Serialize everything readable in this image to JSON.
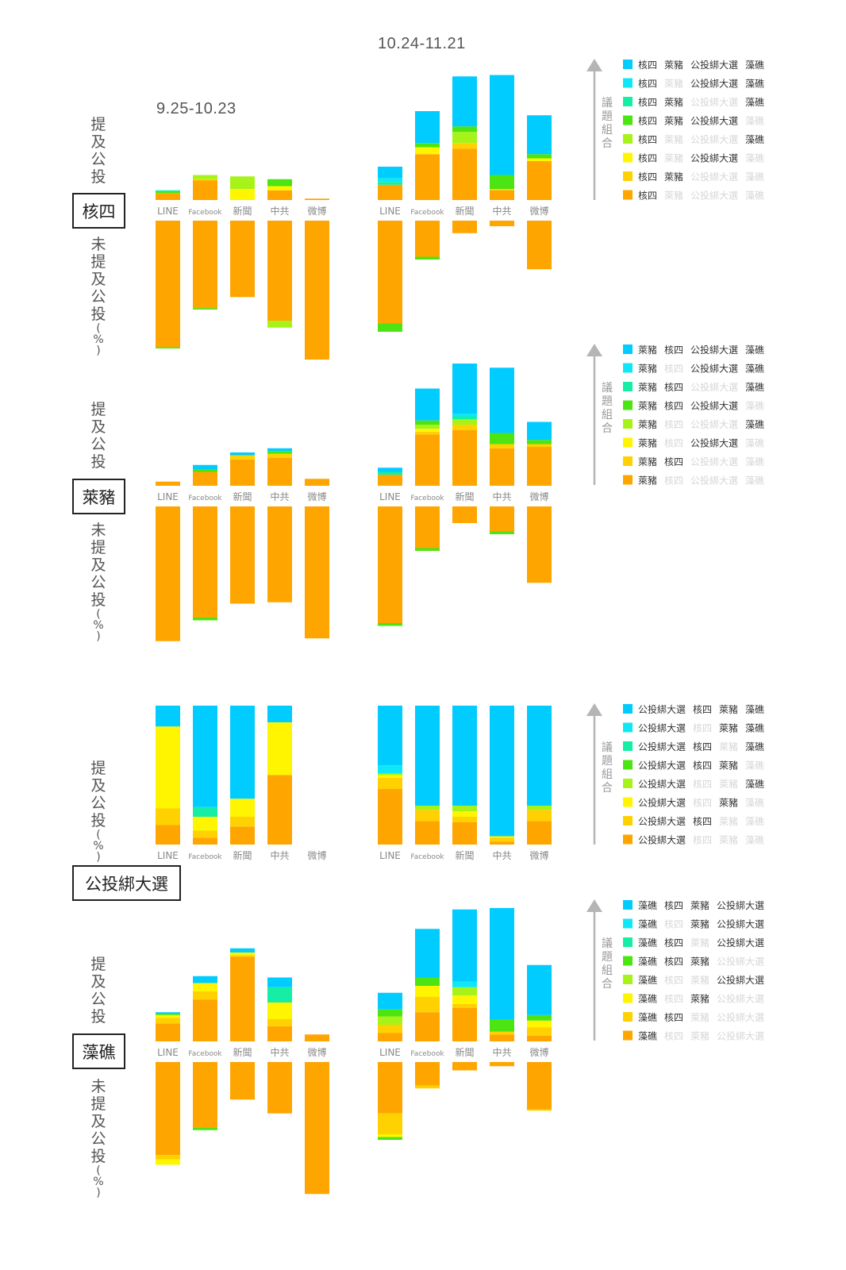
{
  "periods": [
    "9.25-10.23",
    "10.24-11.21"
  ],
  "platforms": [
    "LINE",
    "Facebook",
    "新聞",
    "中共",
    "微博"
  ],
  "labels": {
    "mentioned": "提及公投",
    "not_mentioned": "未提及公投",
    "pct": "(%)",
    "legend_axis": "議題組合"
  },
  "colors": [
    "#00CCFF",
    "#0FE7F7",
    "#16EDA5",
    "#4CE412",
    "#A7F219",
    "#FFF500",
    "#FFD100",
    "#FFA500"
  ],
  "dim_color": "#D6D6D6",
  "topics": [
    {
      "name": "核四",
      "legend": [
        [
          [
            "核四",
            1
          ],
          [
            "萊豬",
            1
          ],
          [
            "公投綁大選",
            1
          ],
          [
            "藻礁",
            1
          ]
        ],
        [
          [
            "核四",
            1
          ],
          [
            "萊豬",
            0
          ],
          [
            "公投綁大選",
            1
          ],
          [
            "藻礁",
            1
          ]
        ],
        [
          [
            "核四",
            1
          ],
          [
            "萊豬",
            1
          ],
          [
            "公投綁大選",
            0
          ],
          [
            "藻礁",
            1
          ]
        ],
        [
          [
            "核四",
            1
          ],
          [
            "萊豬",
            1
          ],
          [
            "公投綁大選",
            1
          ],
          [
            "藻礁",
            0
          ]
        ],
        [
          [
            "核四",
            1
          ],
          [
            "萊豬",
            0
          ],
          [
            "公投綁大選",
            0
          ],
          [
            "藻礁",
            1
          ]
        ],
        [
          [
            "核四",
            1
          ],
          [
            "萊豬",
            0
          ],
          [
            "公投綁大選",
            1
          ],
          [
            "藻礁",
            0
          ]
        ],
        [
          [
            "核四",
            1
          ],
          [
            "萊豬",
            1
          ],
          [
            "公投綁大選",
            0
          ],
          [
            "藻礁",
            0
          ]
        ],
        [
          [
            "核四",
            1
          ],
          [
            "萊豬",
            0
          ],
          [
            "公投綁大選",
            0
          ],
          [
            "藻礁",
            0
          ]
        ]
      ]
    },
    {
      "name": "萊豬",
      "legend": [
        [
          [
            "萊豬",
            1
          ],
          [
            "核四",
            1
          ],
          [
            "公投綁大選",
            1
          ],
          [
            "藻礁",
            1
          ]
        ],
        [
          [
            "萊豬",
            1
          ],
          [
            "核四",
            0
          ],
          [
            "公投綁大選",
            1
          ],
          [
            "藻礁",
            1
          ]
        ],
        [
          [
            "萊豬",
            1
          ],
          [
            "核四",
            1
          ],
          [
            "公投綁大選",
            0
          ],
          [
            "藻礁",
            1
          ]
        ],
        [
          [
            "萊豬",
            1
          ],
          [
            "核四",
            1
          ],
          [
            "公投綁大選",
            1
          ],
          [
            "藻礁",
            0
          ]
        ],
        [
          [
            "萊豬",
            1
          ],
          [
            "核四",
            0
          ],
          [
            "公投綁大選",
            0
          ],
          [
            "藻礁",
            1
          ]
        ],
        [
          [
            "萊豬",
            1
          ],
          [
            "核四",
            0
          ],
          [
            "公投綁大選",
            1
          ],
          [
            "藻礁",
            0
          ]
        ],
        [
          [
            "萊豬",
            1
          ],
          [
            "核四",
            1
          ],
          [
            "公投綁大選",
            0
          ],
          [
            "藻礁",
            0
          ]
        ],
        [
          [
            "萊豬",
            1
          ],
          [
            "核四",
            0
          ],
          [
            "公投綁大選",
            0
          ],
          [
            "藻礁",
            0
          ]
        ]
      ]
    },
    {
      "name": "公投綁大選",
      "legend": [
        [
          [
            "公投綁大選",
            1
          ],
          [
            "核四",
            1
          ],
          [
            "萊豬",
            1
          ],
          [
            "藻礁",
            1
          ]
        ],
        [
          [
            "公投綁大選",
            1
          ],
          [
            "核四",
            0
          ],
          [
            "萊豬",
            1
          ],
          [
            "藻礁",
            1
          ]
        ],
        [
          [
            "公投綁大選",
            1
          ],
          [
            "核四",
            1
          ],
          [
            "萊豬",
            0
          ],
          [
            "藻礁",
            1
          ]
        ],
        [
          [
            "公投綁大選",
            1
          ],
          [
            "核四",
            1
          ],
          [
            "萊豬",
            1
          ],
          [
            "藻礁",
            0
          ]
        ],
        [
          [
            "公投綁大選",
            1
          ],
          [
            "核四",
            0
          ],
          [
            "萊豬",
            0
          ],
          [
            "藻礁",
            1
          ]
        ],
        [
          [
            "公投綁大選",
            1
          ],
          [
            "核四",
            0
          ],
          [
            "萊豬",
            1
          ],
          [
            "藻礁",
            0
          ]
        ],
        [
          [
            "公投綁大選",
            1
          ],
          [
            "核四",
            1
          ],
          [
            "萊豬",
            0
          ],
          [
            "藻礁",
            0
          ]
        ],
        [
          [
            "公投綁大選",
            1
          ],
          [
            "核四",
            0
          ],
          [
            "萊豬",
            0
          ],
          [
            "藻礁",
            0
          ]
        ]
      ]
    },
    {
      "name": "藻礁",
      "legend": [
        [
          [
            "藻礁",
            1
          ],
          [
            "核四",
            1
          ],
          [
            "萊豬",
            1
          ],
          [
            "公投綁大選",
            1
          ]
        ],
        [
          [
            "藻礁",
            1
          ],
          [
            "核四",
            0
          ],
          [
            "萊豬",
            1
          ],
          [
            "公投綁大選",
            1
          ]
        ],
        [
          [
            "藻礁",
            1
          ],
          [
            "核四",
            1
          ],
          [
            "萊豬",
            0
          ],
          [
            "公投綁大選",
            1
          ]
        ],
        [
          [
            "藻礁",
            1
          ],
          [
            "核四",
            1
          ],
          [
            "萊豬",
            1
          ],
          [
            "公投綁大選",
            0
          ]
        ],
        [
          [
            "藻礁",
            1
          ],
          [
            "核四",
            0
          ],
          [
            "萊豬",
            0
          ],
          [
            "公投綁大選",
            1
          ]
        ],
        [
          [
            "藻礁",
            1
          ],
          [
            "核四",
            0
          ],
          [
            "萊豬",
            1
          ],
          [
            "公投綁大選",
            0
          ]
        ],
        [
          [
            "藻礁",
            1
          ],
          [
            "核四",
            1
          ],
          [
            "萊豬",
            0
          ],
          [
            "公投綁大選",
            0
          ]
        ],
        [
          [
            "藻礁",
            1
          ],
          [
            "核四",
            0
          ],
          [
            "萊豬",
            0
          ],
          [
            "公投綁大選",
            0
          ]
        ]
      ]
    }
  ],
  "chart_data": [
    {
      "type": "bar",
      "topic": "核四",
      "period": "9.25-10.23",
      "categories": [
        "LINE",
        "Facebook",
        "新聞",
        "中共",
        "微博"
      ],
      "ylabel": "提及公投 / 未提及公投 (%)",
      "mentioned": [
        [
          0,
          0,
          1,
          1,
          0,
          0,
          0,
          5
        ],
        [
          0,
          0,
          0,
          0,
          3,
          0,
          1,
          14
        ],
        [
          0,
          0,
          0,
          0,
          9,
          8,
          0,
          0
        ],
        [
          0,
          0,
          0,
          5,
          0,
          3,
          0,
          7
        ],
        [
          0,
          0,
          0,
          0,
          0,
          0,
          0,
          1
        ]
      ],
      "not_mentioned": [
        [
          0,
          0,
          0,
          1,
          0,
          0,
          0,
          91
        ],
        [
          0,
          0,
          0,
          1,
          0,
          0,
          0,
          63
        ],
        [
          0,
          0,
          0,
          0,
          0,
          0,
          0,
          55
        ],
        [
          0,
          0,
          0,
          0,
          5,
          0,
          0,
          72
        ],
        [
          0,
          0,
          0,
          0,
          0,
          0,
          0,
          100
        ]
      ]
    },
    {
      "type": "bar",
      "topic": "核四",
      "period": "10.24-11.21",
      "categories": [
        "LINE",
        "Facebook",
        "新聞",
        "中共",
        "微博"
      ],
      "ylabel": "提及公投 / 未提及公投 (%)",
      "mentioned": [
        [
          8,
          3,
          2,
          0,
          0,
          0,
          0,
          11
        ],
        [
          23,
          0,
          0,
          3,
          0,
          5,
          0,
          33
        ],
        [
          36,
          0,
          0,
          4,
          8,
          0,
          4,
          37
        ],
        [
          72,
          0,
          0,
          10,
          0,
          0,
          1,
          7
        ],
        [
          28,
          0,
          0,
          3,
          0,
          2,
          0,
          28
        ]
      ],
      "not_mentioned": [
        [
          0,
          0,
          0,
          6,
          0,
          0,
          0,
          74
        ],
        [
          0,
          0,
          0,
          2,
          0,
          0,
          0,
          26
        ],
        [
          0,
          0,
          0,
          0,
          0,
          0,
          0,
          9
        ],
        [
          0,
          0,
          0,
          0,
          0,
          0,
          0,
          4
        ],
        [
          0,
          0,
          0,
          0,
          0,
          0,
          0,
          35
        ]
      ]
    },
    {
      "type": "bar",
      "topic": "萊豬",
      "period": "9.25-10.23",
      "categories": [
        "LINE",
        "Facebook",
        "新聞",
        "中共",
        "微博"
      ],
      "ylabel": "提及公投 / 未提及公投 (%)",
      "mentioned": [
        [
          0,
          0,
          0,
          0,
          0,
          0,
          0,
          3
        ],
        [
          3,
          0,
          0,
          2,
          0,
          0,
          0,
          10
        ],
        [
          2,
          0,
          0,
          0,
          0,
          0,
          3,
          19
        ],
        [
          2,
          0,
          0,
          2,
          0,
          0,
          3,
          20
        ],
        [
          0,
          0,
          0,
          0,
          0,
          0,
          0,
          5
        ]
      ],
      "not_mentioned": [
        [
          0,
          0,
          0,
          0,
          0,
          0,
          0,
          97
        ],
        [
          0,
          0,
          0,
          2,
          0,
          0,
          0,
          80
        ],
        [
          0,
          0,
          0,
          0,
          0,
          0,
          0,
          70
        ],
        [
          0,
          0,
          0,
          0,
          0,
          0,
          0,
          69
        ],
        [
          0,
          0,
          0,
          0,
          0,
          0,
          0,
          95
        ]
      ]
    },
    {
      "type": "bar",
      "topic": "萊豬",
      "period": "10.24-11.21",
      "categories": [
        "LINE",
        "Facebook",
        "新聞",
        "中共",
        "微博"
      ],
      "ylabel": "提及公投 / 未提及公投 (%)",
      "mentioned": [
        [
          3,
          0,
          2,
          0,
          0,
          0,
          0,
          8
        ],
        [
          23,
          0,
          0,
          3,
          3,
          2,
          2,
          37
        ],
        [
          36,
          2,
          2,
          0,
          4,
          0,
          4,
          40
        ],
        [
          47,
          0,
          0,
          8,
          0,
          0,
          3,
          27
        ],
        [
          13,
          0,
          0,
          3,
          0,
          0,
          2,
          28
        ]
      ],
      "not_mentioned": [
        [
          0,
          0,
          0,
          2,
          0,
          0,
          0,
          84
        ],
        [
          0,
          0,
          0,
          2,
          0,
          0,
          0,
          30
        ],
        [
          0,
          0,
          0,
          0,
          0,
          0,
          0,
          12
        ],
        [
          0,
          0,
          0,
          2,
          0,
          0,
          0,
          18
        ],
        [
          0,
          0,
          0,
          0,
          0,
          0,
          0,
          55
        ]
      ]
    },
    {
      "type": "bar",
      "topic": "公投綁大選",
      "period": "9.25-10.23",
      "categories": [
        "LINE",
        "Facebook",
        "新聞",
        "中共",
        "微博"
      ],
      "ylabel": "提及公投 (%)",
      "mentioned": [
        [
          15,
          0,
          0,
          0,
          0,
          59,
          12,
          14
        ],
        [
          73,
          0,
          7,
          0,
          0,
          10,
          5,
          5
        ],
        [
          67,
          0,
          0,
          0,
          0,
          13,
          7,
          13
        ],
        [
          12,
          0,
          0,
          0,
          0,
          38,
          0,
          50
        ],
        [
          0,
          0,
          0,
          0,
          0,
          0,
          0,
          0
        ]
      ]
    },
    {
      "type": "bar",
      "topic": "公投綁大選",
      "period": "10.24-11.21",
      "categories": [
        "LINE",
        "Facebook",
        "新聞",
        "中共",
        "微博"
      ],
      "ylabel": "提及公投 (%)",
      "mentioned": [
        [
          43,
          6,
          0,
          0,
          1,
          2,
          8,
          40
        ],
        [
          72,
          0,
          0,
          0,
          3,
          0,
          8,
          17
        ],
        [
          72,
          0,
          0,
          0,
          4,
          4,
          4,
          16
        ],
        [
          94,
          0,
          0,
          0,
          0,
          1,
          3,
          2
        ],
        [
          72,
          0,
          0,
          0,
          3,
          0,
          8,
          17
        ]
      ]
    },
    {
      "type": "bar",
      "topic": "藻礁",
      "period": "9.25-10.23",
      "categories": [
        "LINE",
        "Facebook",
        "新聞",
        "中共",
        "微博"
      ],
      "ylabel": "提及公投 / 未提及公投 (%)",
      "mentioned": [
        [
          1,
          0,
          0,
          1,
          0,
          2,
          4,
          13
        ],
        [
          5,
          0,
          0,
          0,
          0,
          6,
          6,
          30
        ],
        [
          3,
          0,
          0,
          0,
          0,
          2,
          1,
          61
        ],
        [
          7,
          0,
          11,
          0,
          0,
          12,
          5,
          11
        ],
        [
          0,
          0,
          0,
          0,
          0,
          0,
          0,
          5
        ]
      ],
      "not_mentioned": [
        [
          0,
          0,
          0,
          0,
          0,
          4,
          3,
          67
        ],
        [
          0,
          0,
          0,
          2,
          0,
          0,
          0,
          47
        ],
        [
          0,
          0,
          0,
          0,
          0,
          0,
          0,
          27
        ],
        [
          0,
          0,
          0,
          0,
          0,
          0,
          0,
          37
        ],
        [
          0,
          0,
          0,
          0,
          0,
          0,
          0,
          95
        ]
      ]
    },
    {
      "type": "bar",
      "topic": "藻礁",
      "period": "10.24-11.21",
      "categories": [
        "LINE",
        "Facebook",
        "新聞",
        "中共",
        "微博"
      ],
      "ylabel": "提及公投 / 未提及公投 (%)",
      "mentioned": [
        [
          12,
          0,
          0,
          5,
          6,
          0,
          6,
          6
        ],
        [
          35,
          0,
          0,
          6,
          0,
          8,
          11,
          21
        ],
        [
          52,
          4,
          0,
          0,
          6,
          6,
          3,
          24
        ],
        [
          80,
          0,
          0,
          9,
          0,
          0,
          2,
          5
        ],
        [
          36,
          0,
          0,
          4,
          0,
          5,
          6,
          4
        ]
      ],
      "not_mentioned": [
        [
          0,
          0,
          0,
          2,
          0,
          2,
          15,
          37
        ],
        [
          0,
          0,
          0,
          0,
          0,
          0,
          2,
          17
        ],
        [
          0,
          0,
          0,
          0,
          0,
          0,
          0,
          6
        ],
        [
          0,
          0,
          0,
          0,
          0,
          0,
          0,
          3
        ],
        [
          0,
          0,
          0,
          0,
          0,
          0,
          1,
          34
        ]
      ]
    }
  ]
}
